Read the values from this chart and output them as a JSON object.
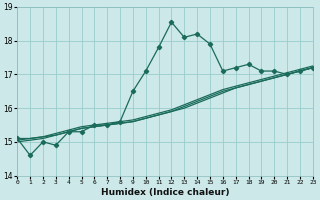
{
  "xlabel": "Humidex (Indice chaleur)",
  "bg_color": "#cce8e8",
  "grid_color": "#99cccc",
  "line_color": "#1a6b5a",
  "xlim": [
    0,
    23
  ],
  "ylim": [
    14,
    19
  ],
  "yticks": [
    14,
    15,
    16,
    17,
    18,
    19
  ],
  "xticks": [
    0,
    1,
    2,
    3,
    4,
    5,
    6,
    7,
    8,
    9,
    10,
    11,
    12,
    13,
    14,
    15,
    16,
    17,
    18,
    19,
    20,
    21,
    22,
    23
  ],
  "lines": [
    {
      "x": [
        0,
        1,
        2,
        3,
        4,
        5,
        6,
        7,
        8,
        9,
        10,
        11,
        12,
        13,
        14,
        15,
        16,
        17,
        18,
        19,
        20,
        21,
        22,
        23
      ],
      "y": [
        15.1,
        14.6,
        15.0,
        14.9,
        15.3,
        15.3,
        15.5,
        15.5,
        15.6,
        16.5,
        17.1,
        17.8,
        18.55,
        18.1,
        18.2,
        17.9,
        17.1,
        17.2,
        17.3,
        17.1,
        17.1,
        17.0,
        17.1,
        17.2
      ],
      "marker": "D"
    },
    {
      "x": [
        0,
        1,
        2,
        3,
        4,
        5,
        6,
        7,
        8,
        9,
        10,
        11,
        12,
        13,
        14,
        15,
        16,
        17,
        18,
        19,
        20,
        21,
        22,
        23
      ],
      "y": [
        15.1,
        15.1,
        15.15,
        15.2,
        15.3,
        15.4,
        15.45,
        15.5,
        15.55,
        15.6,
        15.7,
        15.8,
        15.9,
        16.0,
        16.15,
        16.3,
        16.45,
        16.6,
        16.7,
        16.8,
        16.9,
        17.0,
        17.1,
        17.2
      ],
      "marker": null
    },
    {
      "x": [
        0,
        1,
        2,
        3,
        4,
        5,
        6,
        7,
        8,
        9,
        10,
        11,
        12,
        13,
        14,
        15,
        16,
        17,
        18,
        19,
        20,
        21,
        22,
        23
      ],
      "y": [
        15.05,
        15.1,
        15.15,
        15.25,
        15.35,
        15.45,
        15.5,
        15.55,
        15.6,
        15.65,
        15.75,
        15.85,
        15.95,
        16.1,
        16.25,
        16.4,
        16.55,
        16.65,
        16.75,
        16.85,
        16.95,
        17.05,
        17.15,
        17.25
      ],
      "marker": null
    },
    {
      "x": [
        0,
        1,
        2,
        3,
        4,
        5,
        6,
        7,
        8,
        9,
        10,
        11,
        12,
        13,
        14,
        15,
        16,
        17,
        18,
        19,
        20,
        21,
        22,
        23
      ],
      "y": [
        15.0,
        15.05,
        15.1,
        15.2,
        15.3,
        15.4,
        15.45,
        15.5,
        15.55,
        15.6,
        15.7,
        15.8,
        15.9,
        16.05,
        16.2,
        16.35,
        16.5,
        16.6,
        16.7,
        16.8,
        16.9,
        17.0,
        17.1,
        17.2
      ],
      "marker": null
    }
  ]
}
